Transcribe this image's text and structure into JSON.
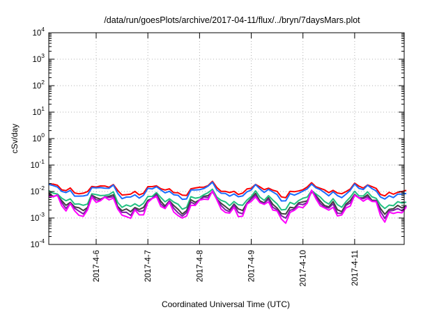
{
  "chart_data": {
    "type": "line",
    "title": "/data/run/goesPlots/archive/2017-04-11/flux/../bryn/7daysMars.plot",
    "xlabel": "Coordinated Universal Time (UTC)",
    "ylabel": "cSv/day",
    "yscale": "log",
    "ylim_exponents": [
      -4,
      4
    ],
    "y_tick_base": "10",
    "y_tick_exponents": [
      "-4",
      "-3",
      "-2",
      "-1",
      "0",
      "1",
      "2",
      "3",
      "4"
    ],
    "xlim": [
      "2017-04-05 02:00",
      "2017-04-11 23:00"
    ],
    "x_ticks": [
      "2017-4-6",
      "2017-4-7",
      "2017-4-8",
      "2017-4-9",
      "2017-4-10",
      "2017-4-11"
    ],
    "grid": true,
    "x_resolution_hours": 2,
    "series": [
      {
        "color": "#ff0000",
        "base": 0.0115,
        "values": []
      },
      {
        "color": "#1a6cff",
        "base": 0.0095,
        "values": []
      },
      {
        "color": "#20c080",
        "base": 0.0048,
        "values": []
      },
      {
        "color": "#404040",
        "base": 0.0036,
        "values": []
      },
      {
        "color": "#7a1fa0",
        "base": 0.0031,
        "values": []
      },
      {
        "color": "#ff00ff",
        "base": 0.0026,
        "values": []
      }
    ]
  }
}
